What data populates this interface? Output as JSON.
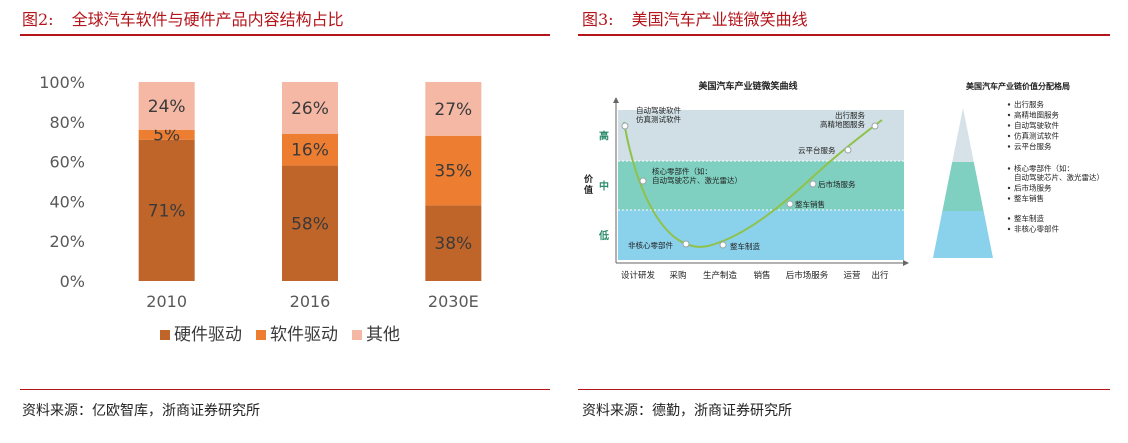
{
  "left": {
    "fig_num": "图2:",
    "title": "全球汽车软件与硬件产品内容结构占比",
    "source": "资料来源：亿欧智库，浙商证券研究所"
  },
  "right": {
    "fig_num": "图3:",
    "title": "美国汽车产业链微笑曲线",
    "source": "资料来源：德勤，浙商证券研究所"
  },
  "chart_data": [
    {
      "type": "bar",
      "stacked": true,
      "categories": [
        "2010",
        "2016",
        "2030E"
      ],
      "series": [
        {
          "name": "硬件驱动",
          "values": [
            71,
            58,
            38
          ],
          "labels": [
            "71%",
            "58%",
            "38%"
          ],
          "color": "#c0652a"
        },
        {
          "name": "软件驱动",
          "values": [
            5,
            16,
            35
          ],
          "labels": [
            "5%",
            "16%",
            "35%"
          ],
          "color": "#ed7d31"
        },
        {
          "name": "其他",
          "values": [
            24,
            26,
            27
          ],
          "labels": [
            "24%",
            "26%",
            "27%"
          ],
          "color": "#f4b8a5"
        }
      ],
      "yticks": [
        "0%",
        "20%",
        "40%",
        "60%",
        "80%",
        "100%"
      ],
      "ylim": [
        0,
        100
      ],
      "legend": "bottom",
      "grid": false
    },
    {
      "type": "line",
      "title": "美国汽车产业链微笑曲线",
      "ylabel": "价值",
      "xticks": [
        "设计研发",
        "采购",
        "生产制造",
        "销售",
        "后市场服务",
        "运营",
        "出行"
      ],
      "bands": [
        {
          "label": "高",
          "color": "#cfdfe5"
        },
        {
          "label": "中",
          "color": "#7fd0c1"
        },
        {
          "label": "低",
          "color": "#8ad1ec"
        }
      ],
      "curve_color": "#8fc24a",
      "points": [
        {
          "label": "自动驾驶软件\n仿真测试软件"
        },
        {
          "label": "核心零部件（如：\n自动驾驶芯片、激光雷达）"
        },
        {
          "label": "非核心零部件"
        },
        {
          "label": "整车制造"
        },
        {
          "label": "整车销售"
        },
        {
          "label": "后市场服务"
        },
        {
          "label": "云平台服务"
        },
        {
          "label": "出行服务\n高精地图服务"
        }
      ]
    },
    {
      "type": "pyramid",
      "title": "美国汽车产业链价值分配格局",
      "tiers": [
        {
          "color": "#d7e2e8",
          "items": [
            "出行服务",
            "高精地图服务",
            "自动驾驶软件",
            "仿真测试软件",
            "云平台服务"
          ]
        },
        {
          "color": "#7fd0c1",
          "items": [
            "核心零部件（如：\n自动驾驶芯片、激光雷达）",
            "后市场服务",
            "整车销售"
          ]
        },
        {
          "color": "#8ad1ec",
          "items": [
            "整车制造",
            "非核心零部件"
          ]
        }
      ]
    }
  ]
}
